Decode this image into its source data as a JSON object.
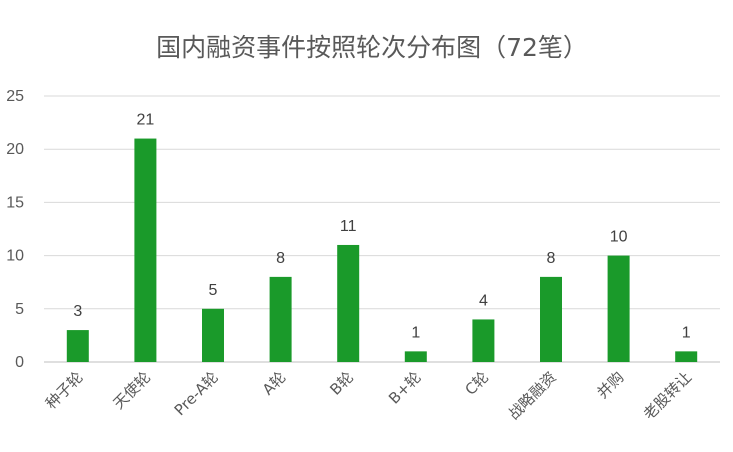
{
  "chart_data": {
    "type": "bar",
    "title": "国内融资事件按照轮次分布图（72笔）",
    "xlabel": "",
    "ylabel": "",
    "categories": [
      "种子轮",
      "天使轮",
      "Pre-A轮",
      "A轮",
      "B轮",
      "B+轮",
      "C轮",
      "战略融资",
      "并购",
      "老股转让"
    ],
    "values": [
      3,
      21,
      5,
      8,
      11,
      1,
      4,
      8,
      10,
      1
    ],
    "ylim": [
      0,
      25
    ],
    "yticks": [
      0,
      5,
      10,
      15,
      20,
      25
    ],
    "grid": true,
    "legend": "none",
    "data_labels": true,
    "bar_color": "#1a9a2a",
    "grid_color": "#d9d9d9",
    "text_color": "#595959"
  }
}
